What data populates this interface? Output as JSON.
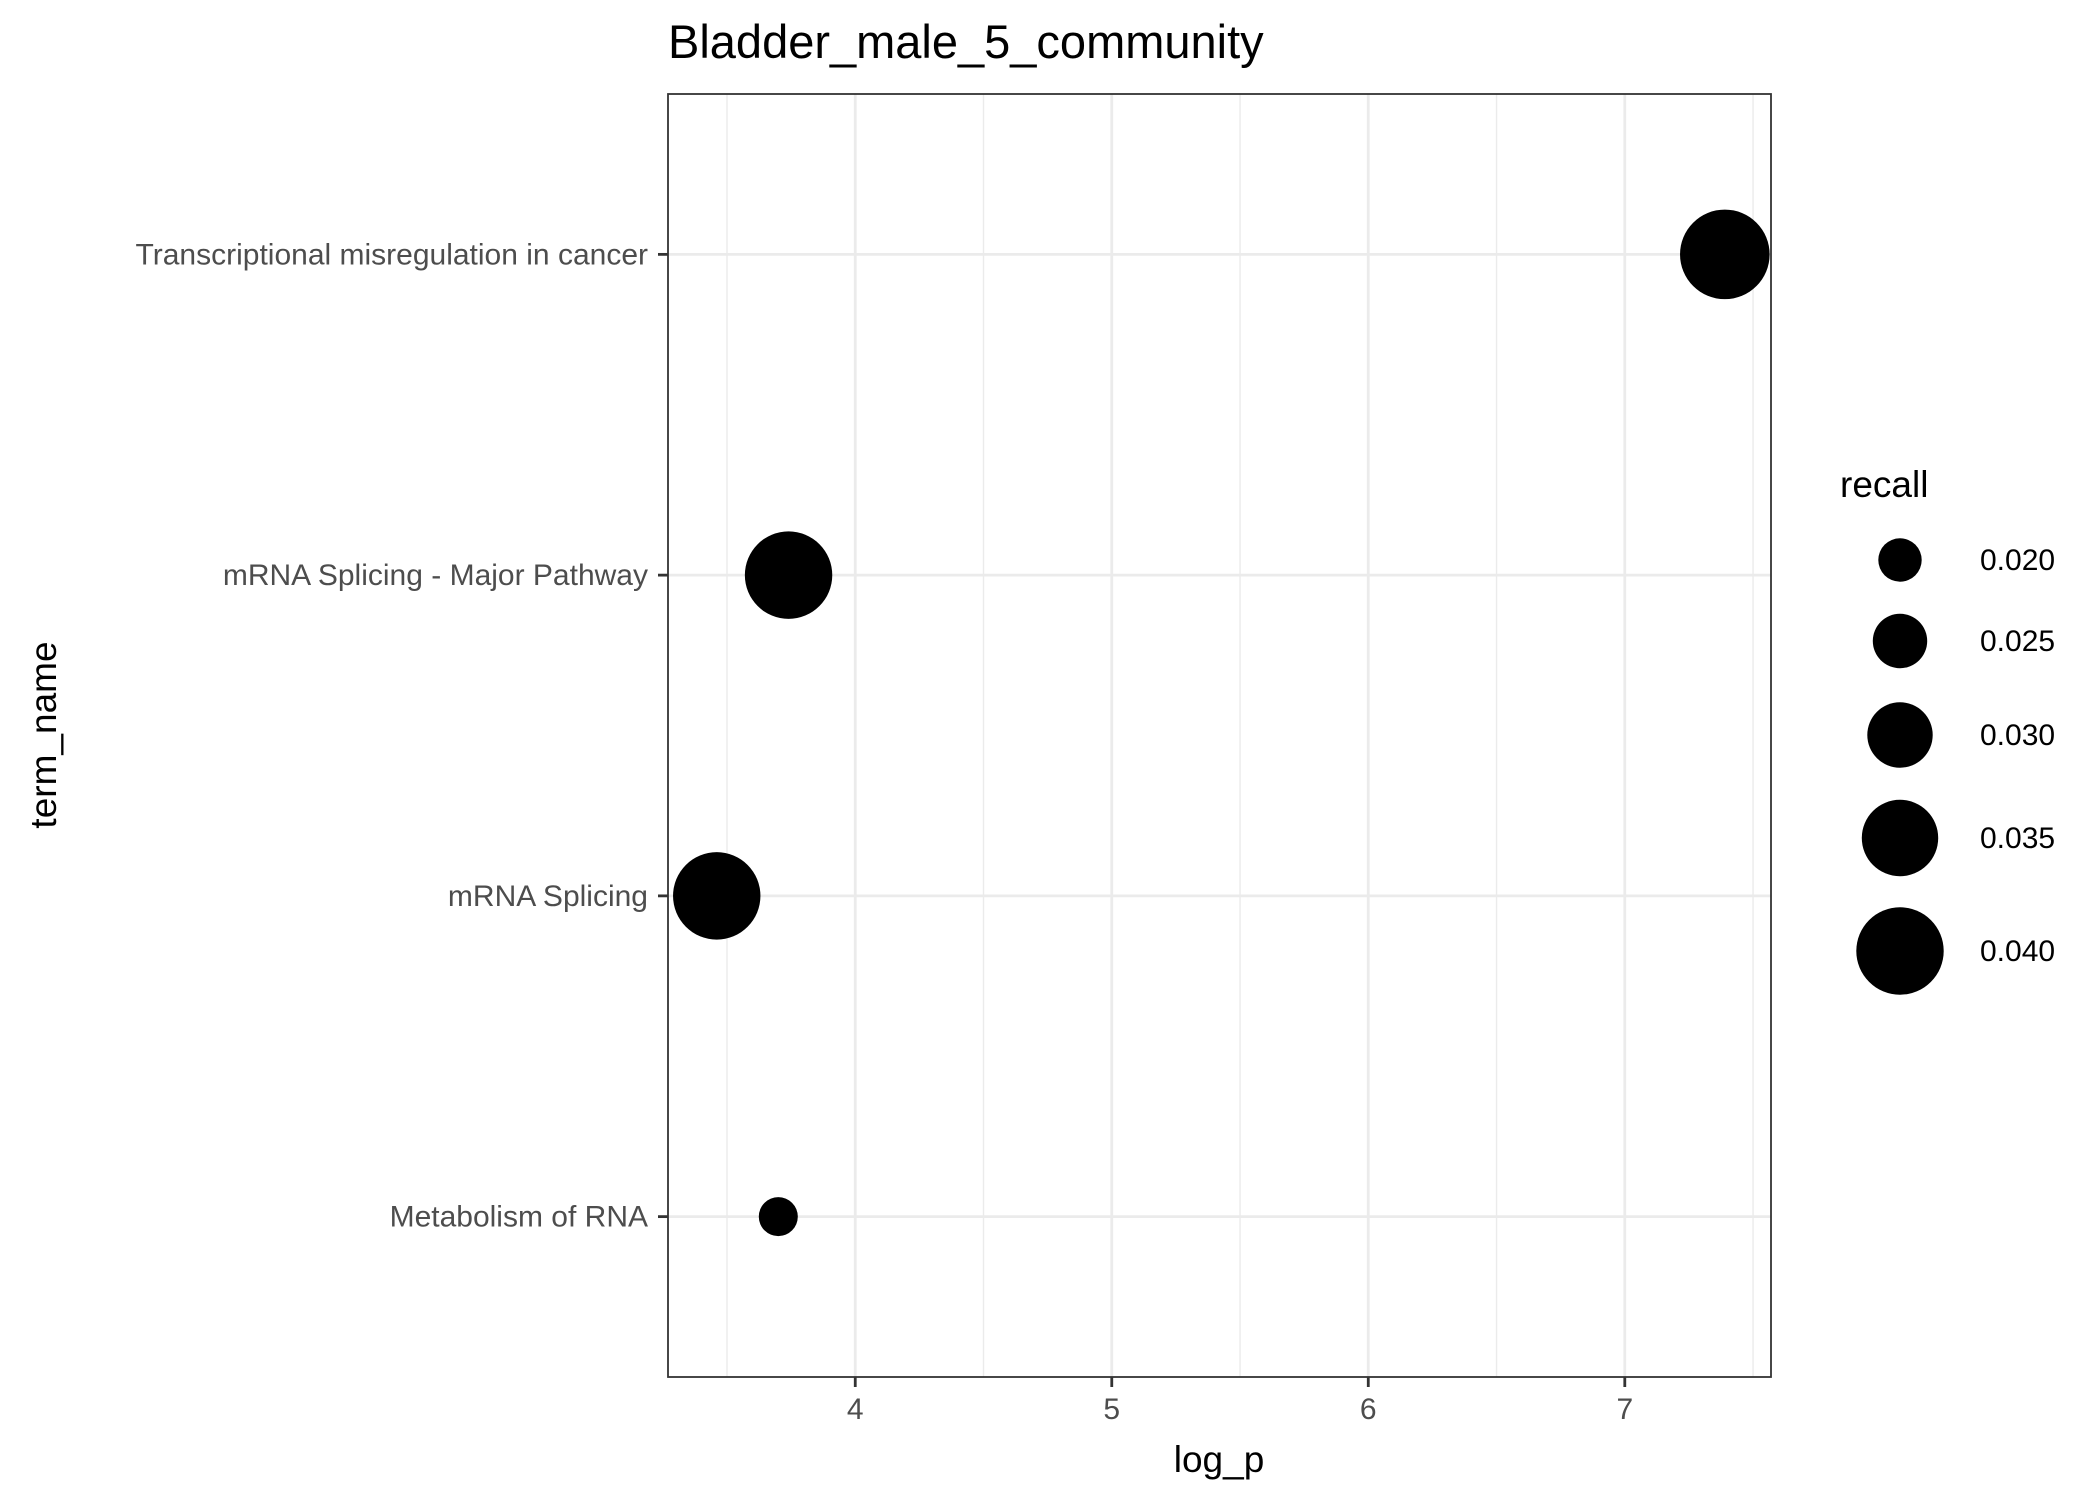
{
  "chart_data": {
    "type": "scatter",
    "title": "Bladder_male_5_community",
    "xlabel": "log_p",
    "ylabel": "term_name",
    "xlim": [
      3.27,
      7.57
    ],
    "xticks": [
      4,
      5,
      6,
      7
    ],
    "categories": [
      "Transcriptional misregulation in cancer",
      "mRNA Splicing - Major Pathway",
      "mRNA Splicing",
      "Metabolism of RNA"
    ],
    "points": [
      {
        "term_name": "Transcriptional misregulation in cancer",
        "log_p": 7.39,
        "recall": 0.041
      },
      {
        "term_name": "mRNA Splicing - Major Pathway",
        "log_p": 3.74,
        "recall": 0.04
      },
      {
        "term_name": "mRNA Splicing",
        "log_p": 3.46,
        "recall": 0.04
      },
      {
        "term_name": "Metabolism of RNA",
        "log_p": 3.7,
        "recall": 0.018
      }
    ],
    "legend": {
      "title": "recall",
      "entries": [
        {
          "label": "0.020",
          "value": 0.02
        },
        {
          "label": "0.025",
          "value": 0.025
        },
        {
          "label": "0.030",
          "value": 0.03
        },
        {
          "label": "0.035",
          "value": 0.035
        },
        {
          "label": "0.040",
          "value": 0.04
        }
      ],
      "placement": "right"
    },
    "grid": true,
    "point_color": "#000000",
    "gridline_color": "#ebebeb",
    "panel_border_color": "#333333"
  }
}
